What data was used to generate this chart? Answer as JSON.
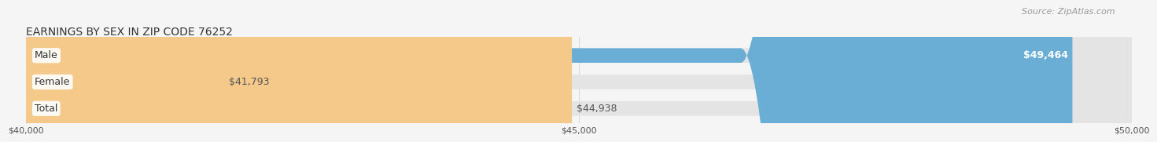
{
  "title": "EARNINGS BY SEX IN ZIP CODE 76252",
  "source": "Source: ZipAtlas.com",
  "categories": [
    "Male",
    "Female",
    "Total"
  ],
  "values": [
    49464,
    41793,
    44938
  ],
  "bar_colors": [
    "#6aaed6",
    "#f4a8bb",
    "#f5c98a"
  ],
  "label_colors": [
    "#ffffff",
    "#555555",
    "#555555"
  ],
  "value_labels": [
    "$49,464",
    "$41,793",
    "$44,938"
  ],
  "xmin": 40000,
  "xmax": 50000,
  "xticks": [
    40000,
    45000,
    50000
  ],
  "xtick_labels": [
    "$40,000",
    "$45,000",
    "$50,000"
  ],
  "background_color": "#f5f5f5",
  "bar_bg_color": "#e4e4e4",
  "title_fontsize": 10,
  "source_fontsize": 8,
  "label_fontsize": 9,
  "value_fontsize": 9,
  "tick_fontsize": 8
}
